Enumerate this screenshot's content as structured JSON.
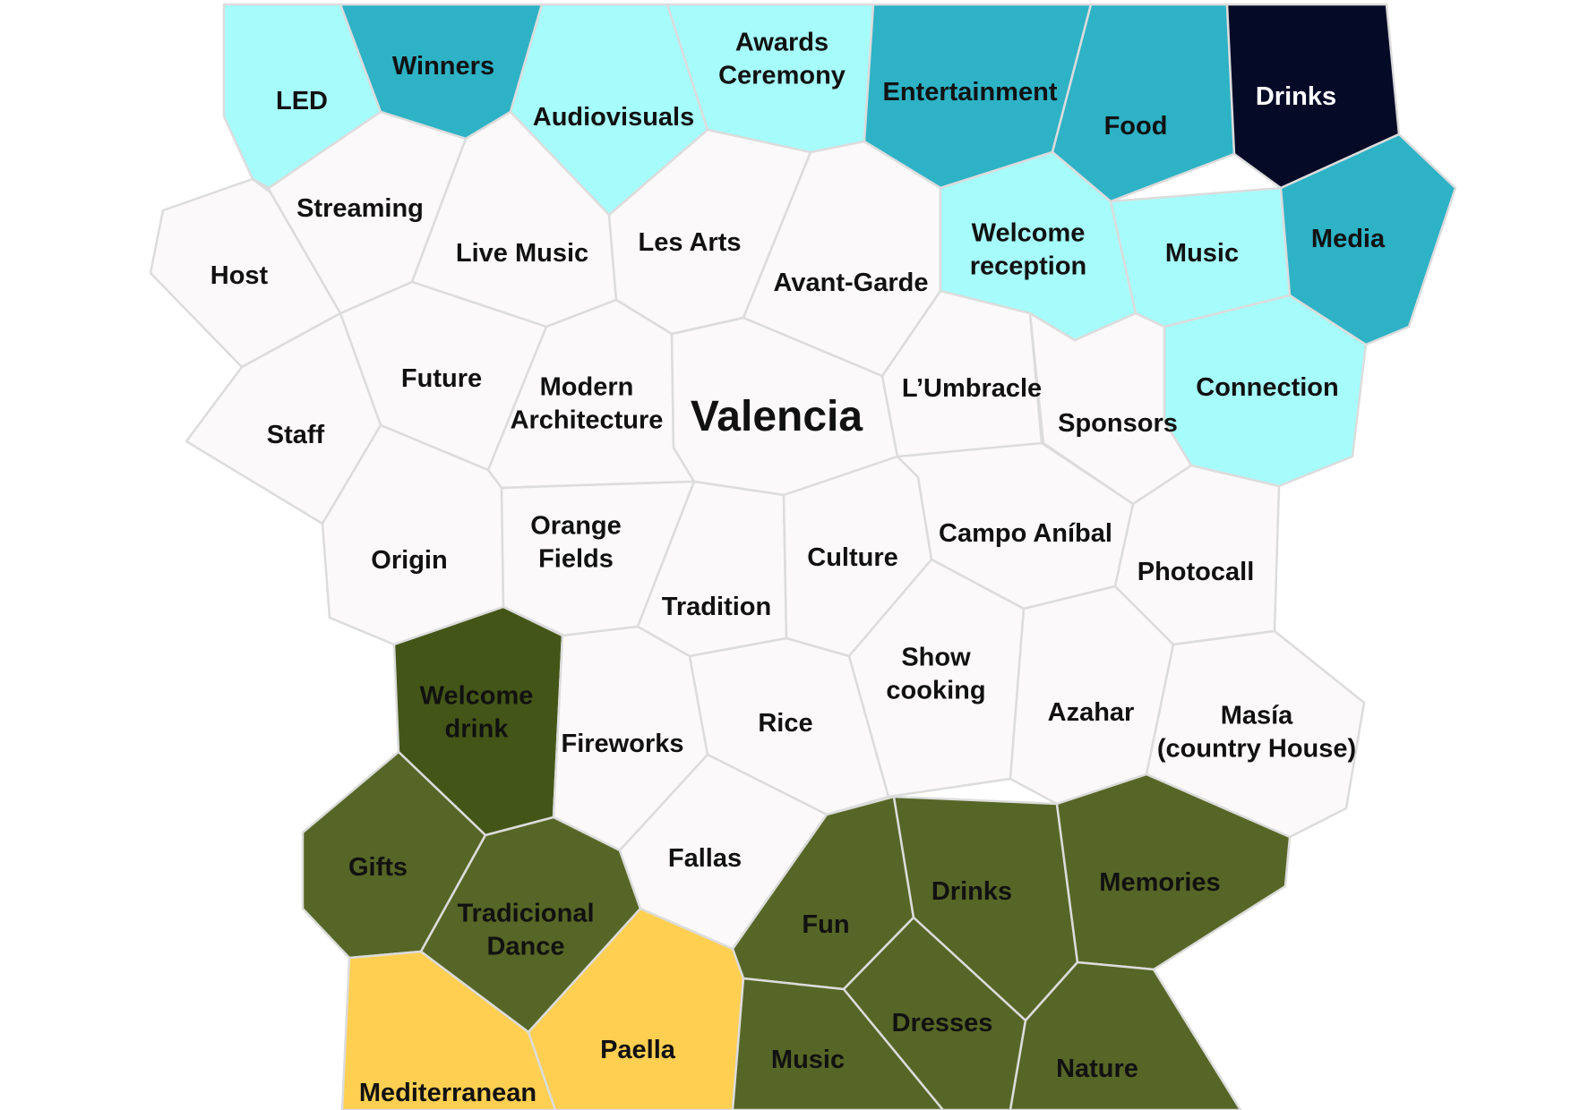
{
  "colors": {
    "white": "#fbf9f9",
    "light_cyan": "#a6fcfb",
    "teal": "#2db2c6",
    "navy": "#050b27",
    "olive": "#566626",
    "dark_olive": "#445617",
    "yellow": "#fecf51",
    "text_dark": "#111111",
    "text_light": "#ffffff",
    "border": "#dcdcdc"
  },
  "cells": [
    {
      "id": "led",
      "lines": [
        "LED"
      ],
      "color": "light_cyan"
    },
    {
      "id": "winners",
      "lines": [
        "Winners"
      ],
      "color": "teal"
    },
    {
      "id": "audiovisuals",
      "lines": [
        "Audiovisuals"
      ],
      "color": "light_cyan"
    },
    {
      "id": "awards-ceremony",
      "lines": [
        "Awards",
        "Ceremony"
      ],
      "color": "light_cyan"
    },
    {
      "id": "entertainment",
      "lines": [
        "Entertainment"
      ],
      "color": "teal"
    },
    {
      "id": "food",
      "lines": [
        "Food"
      ],
      "color": "teal"
    },
    {
      "id": "drinks-top",
      "lines": [
        "Drinks"
      ],
      "color": "navy"
    },
    {
      "id": "streaming",
      "lines": [
        "Streaming"
      ],
      "color": "white"
    },
    {
      "id": "host",
      "lines": [
        "Host"
      ],
      "color": "white"
    },
    {
      "id": "live-music",
      "lines": [
        "Live Music"
      ],
      "color": "white"
    },
    {
      "id": "les-arts",
      "lines": [
        "Les Arts"
      ],
      "color": "white"
    },
    {
      "id": "avant-garde",
      "lines": [
        "Avant-Garde"
      ],
      "color": "white"
    },
    {
      "id": "welcome-reception",
      "lines": [
        "Welcome",
        "reception"
      ],
      "color": "light_cyan"
    },
    {
      "id": "music-top",
      "lines": [
        "Music"
      ],
      "color": "light_cyan"
    },
    {
      "id": "media",
      "lines": [
        "Media"
      ],
      "color": "teal"
    },
    {
      "id": "connection",
      "lines": [
        "Connection"
      ],
      "color": "light_cyan"
    },
    {
      "id": "future",
      "lines": [
        "Future"
      ],
      "color": "white"
    },
    {
      "id": "staff",
      "lines": [
        "Staff"
      ],
      "color": "white"
    },
    {
      "id": "modern-architecture",
      "lines": [
        "Modern",
        "Architecture"
      ],
      "color": "white"
    },
    {
      "id": "valencia",
      "lines": [
        "Valencia"
      ],
      "color": "white",
      "big": true
    },
    {
      "id": "lumbracle",
      "lines": [
        "L’Umbracle"
      ],
      "color": "white"
    },
    {
      "id": "sponsors",
      "lines": [
        "Sponsors"
      ],
      "color": "white"
    },
    {
      "id": "origin",
      "lines": [
        "Origin"
      ],
      "color": "white"
    },
    {
      "id": "orange-fields",
      "lines": [
        "Orange",
        "Fields"
      ],
      "color": "white"
    },
    {
      "id": "tradition",
      "lines": [
        "Tradition"
      ],
      "color": "white"
    },
    {
      "id": "culture",
      "lines": [
        "Culture"
      ],
      "color": "white"
    },
    {
      "id": "campo-anibal",
      "lines": [
        "Campo Aníbal"
      ],
      "color": "white"
    },
    {
      "id": "photocall",
      "lines": [
        "Photocall"
      ],
      "color": "white"
    },
    {
      "id": "welcome-drink",
      "lines": [
        "Welcome",
        "drink"
      ],
      "color": "dark_olive"
    },
    {
      "id": "fireworks",
      "lines": [
        "Fireworks"
      ],
      "color": "white"
    },
    {
      "id": "rice",
      "lines": [
        "Rice"
      ],
      "color": "white"
    },
    {
      "id": "show-cooking",
      "lines": [
        "Show",
        "cooking"
      ],
      "color": "white"
    },
    {
      "id": "azahar",
      "lines": [
        "Azahar"
      ],
      "color": "white"
    },
    {
      "id": "masia",
      "lines": [
        "Masía",
        "(country House)"
      ],
      "color": "white"
    },
    {
      "id": "gifts",
      "lines": [
        "Gifts"
      ],
      "color": "olive"
    },
    {
      "id": "tradicional-dance",
      "lines": [
        "Tradicional",
        "Dance"
      ],
      "color": "olive"
    },
    {
      "id": "fallas",
      "lines": [
        "Fallas"
      ],
      "color": "white"
    },
    {
      "id": "fun",
      "lines": [
        "Fun"
      ],
      "color": "olive"
    },
    {
      "id": "drinks-bottom",
      "lines": [
        "Drinks"
      ],
      "color": "olive"
    },
    {
      "id": "memories",
      "lines": [
        "Memories"
      ],
      "color": "olive"
    },
    {
      "id": "mediterranean",
      "lines": [
        "Mediterranean"
      ],
      "color": "yellow"
    },
    {
      "id": "paella",
      "lines": [
        "Paella"
      ],
      "color": "yellow"
    },
    {
      "id": "music-bottom",
      "lines": [
        "Music"
      ],
      "color": "olive"
    },
    {
      "id": "dresses",
      "lines": [
        "Dresses"
      ],
      "color": "olive"
    },
    {
      "id": "nature",
      "lines": [
        "Nature"
      ],
      "color": "olive"
    }
  ]
}
